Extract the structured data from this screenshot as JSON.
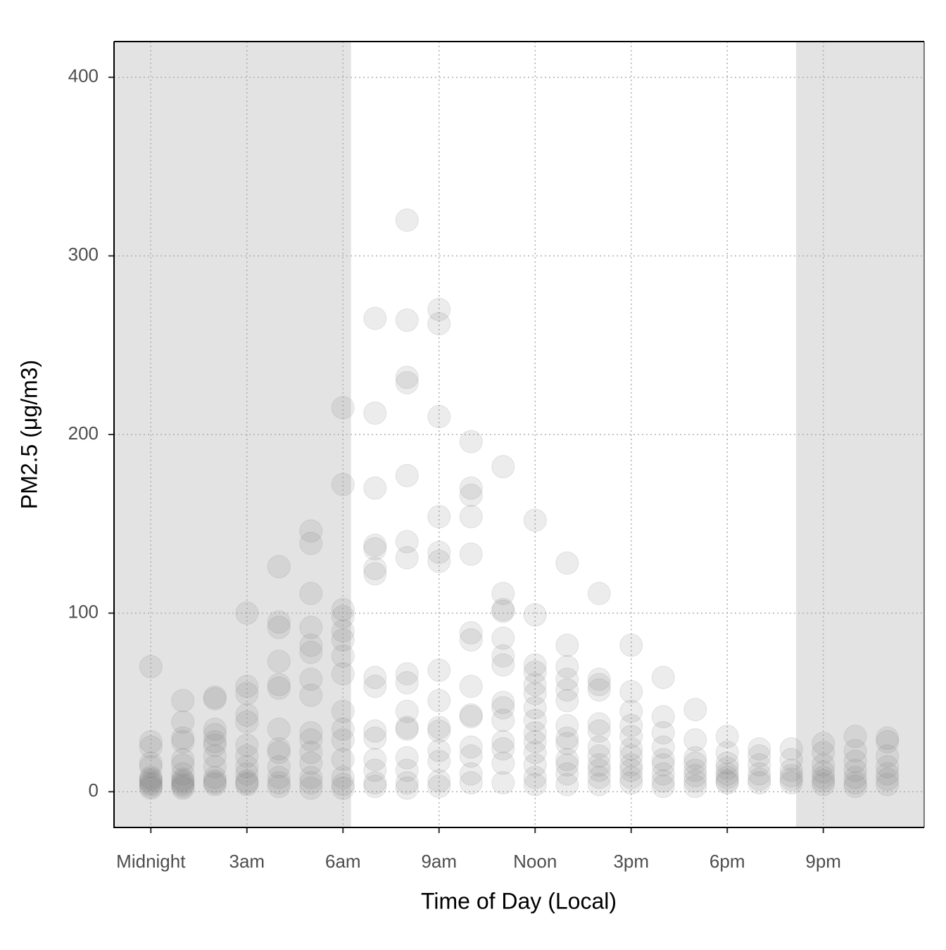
{
  "chart_data": {
    "type": "scatter",
    "x_label": "Time of Day (Local)",
    "y_label": "PM2.5 (μg/m3)",
    "color": "#808080",
    "alpha": 0.15,
    "shade_color": "#e3e3e3",
    "shaded_ranges": [
      [
        -1.15,
        6.25
      ],
      [
        20.15,
        24.15
      ]
    ],
    "xlim": [
      -1.15,
      24.15
    ],
    "ylim": [
      -20,
      420
    ],
    "xticks": [
      {
        "value": 0,
        "label": "Midnight"
      },
      {
        "value": 3,
        "label": "3am"
      },
      {
        "value": 6,
        "label": "6am"
      },
      {
        "value": 9,
        "label": "9am"
      },
      {
        "value": 12,
        "label": "Noon"
      },
      {
        "value": 15,
        "label": "3pm"
      },
      {
        "value": 18,
        "label": "6pm"
      },
      {
        "value": 21,
        "label": "9pm"
      }
    ],
    "yticks": [
      0,
      100,
      200,
      300,
      400
    ],
    "grid": true,
    "groups": [
      {
        "x": 0,
        "values": [
          70,
          28,
          25,
          16,
          14,
          8,
          6,
          4,
          3,
          2,
          5,
          7
        ]
      },
      {
        "x": 1,
        "values": [
          51,
          39,
          30,
          28,
          18,
          15,
          10,
          7,
          5,
          4,
          3,
          2,
          6
        ]
      },
      {
        "x": 2,
        "values": [
          53,
          52,
          35,
          32,
          28,
          26,
          20,
          14,
          8,
          6,
          5,
          4
        ]
      },
      {
        "x": 3,
        "values": [
          100,
          59,
          55,
          43,
          39,
          26,
          20,
          14,
          10,
          6,
          5,
          4
        ]
      },
      {
        "x": 4,
        "values": [
          126,
          95,
          92,
          73,
          60,
          58,
          35,
          24,
          22,
          14,
          8,
          5,
          3
        ]
      },
      {
        "x": 5,
        "values": [
          146,
          139,
          111,
          92,
          82,
          78,
          63,
          54,
          33,
          29,
          22,
          16,
          8,
          5,
          2
        ]
      },
      {
        "x": 6,
        "values": [
          215,
          172,
          102,
          98,
          90,
          85,
          76,
          66,
          45,
          35,
          29,
          18,
          8,
          4,
          2
        ]
      },
      {
        "x": 7,
        "values": [
          265,
          212,
          170,
          138,
          136,
          125,
          122,
          64,
          59,
          34,
          30,
          18,
          12,
          5,
          3
        ]
      },
      {
        "x": 8,
        "values": [
          320,
          264,
          232,
          229,
          177,
          140,
          131,
          66,
          61,
          45,
          36,
          35,
          19,
          12,
          5,
          2
        ]
      },
      {
        "x": 9,
        "values": [
          270,
          262,
          210,
          154,
          134,
          129,
          68,
          51,
          36,
          34,
          23,
          17,
          6,
          3
        ]
      },
      {
        "x": 10,
        "values": [
          196,
          170,
          166,
          154,
          133,
          89,
          85,
          59,
          43,
          42,
          25,
          20,
          10,
          5
        ]
      },
      {
        "x": 11,
        "values": [
          182,
          111,
          102,
          101,
          86,
          76,
          71,
          50,
          47,
          40,
          28,
          24,
          16,
          5
        ]
      },
      {
        "x": 12,
        "values": [
          152,
          99,
          71,
          67,
          60,
          55,
          47,
          40,
          33,
          28,
          22,
          15,
          8,
          4
        ]
      },
      {
        "x": 13,
        "values": [
          128,
          82,
          70,
          63,
          57,
          51,
          37,
          30,
          27,
          18,
          15,
          10,
          4
        ]
      },
      {
        "x": 14,
        "values": [
          111,
          63,
          60,
          57,
          38,
          34,
          25,
          20,
          15,
          12,
          8,
          4
        ]
      },
      {
        "x": 15,
        "values": [
          82,
          56,
          45,
          37,
          31,
          24,
          20,
          15,
          12,
          8,
          5
        ]
      },
      {
        "x": 16,
        "values": [
          64,
          42,
          33,
          25,
          18,
          15,
          10,
          6,
          3
        ]
      },
      {
        "x": 17,
        "values": [
          46,
          29,
          19,
          16,
          12,
          9,
          6,
          3
        ]
      },
      {
        "x": 18,
        "values": [
          31,
          22,
          16,
          13,
          10,
          8,
          6,
          5
        ]
      },
      {
        "x": 19,
        "values": [
          24,
          20,
          15,
          10,
          7,
          5
        ]
      },
      {
        "x": 20,
        "values": [
          24,
          18,
          12,
          9,
          7,
          5
        ]
      },
      {
        "x": 21,
        "values": [
          27,
          22,
          15,
          11,
          8,
          6,
          4
        ]
      },
      {
        "x": 22,
        "values": [
          31,
          23,
          17,
          12,
          8,
          5,
          3
        ]
      },
      {
        "x": 23,
        "values": [
          30,
          28,
          20,
          14,
          10,
          7,
          4
        ]
      }
    ]
  }
}
